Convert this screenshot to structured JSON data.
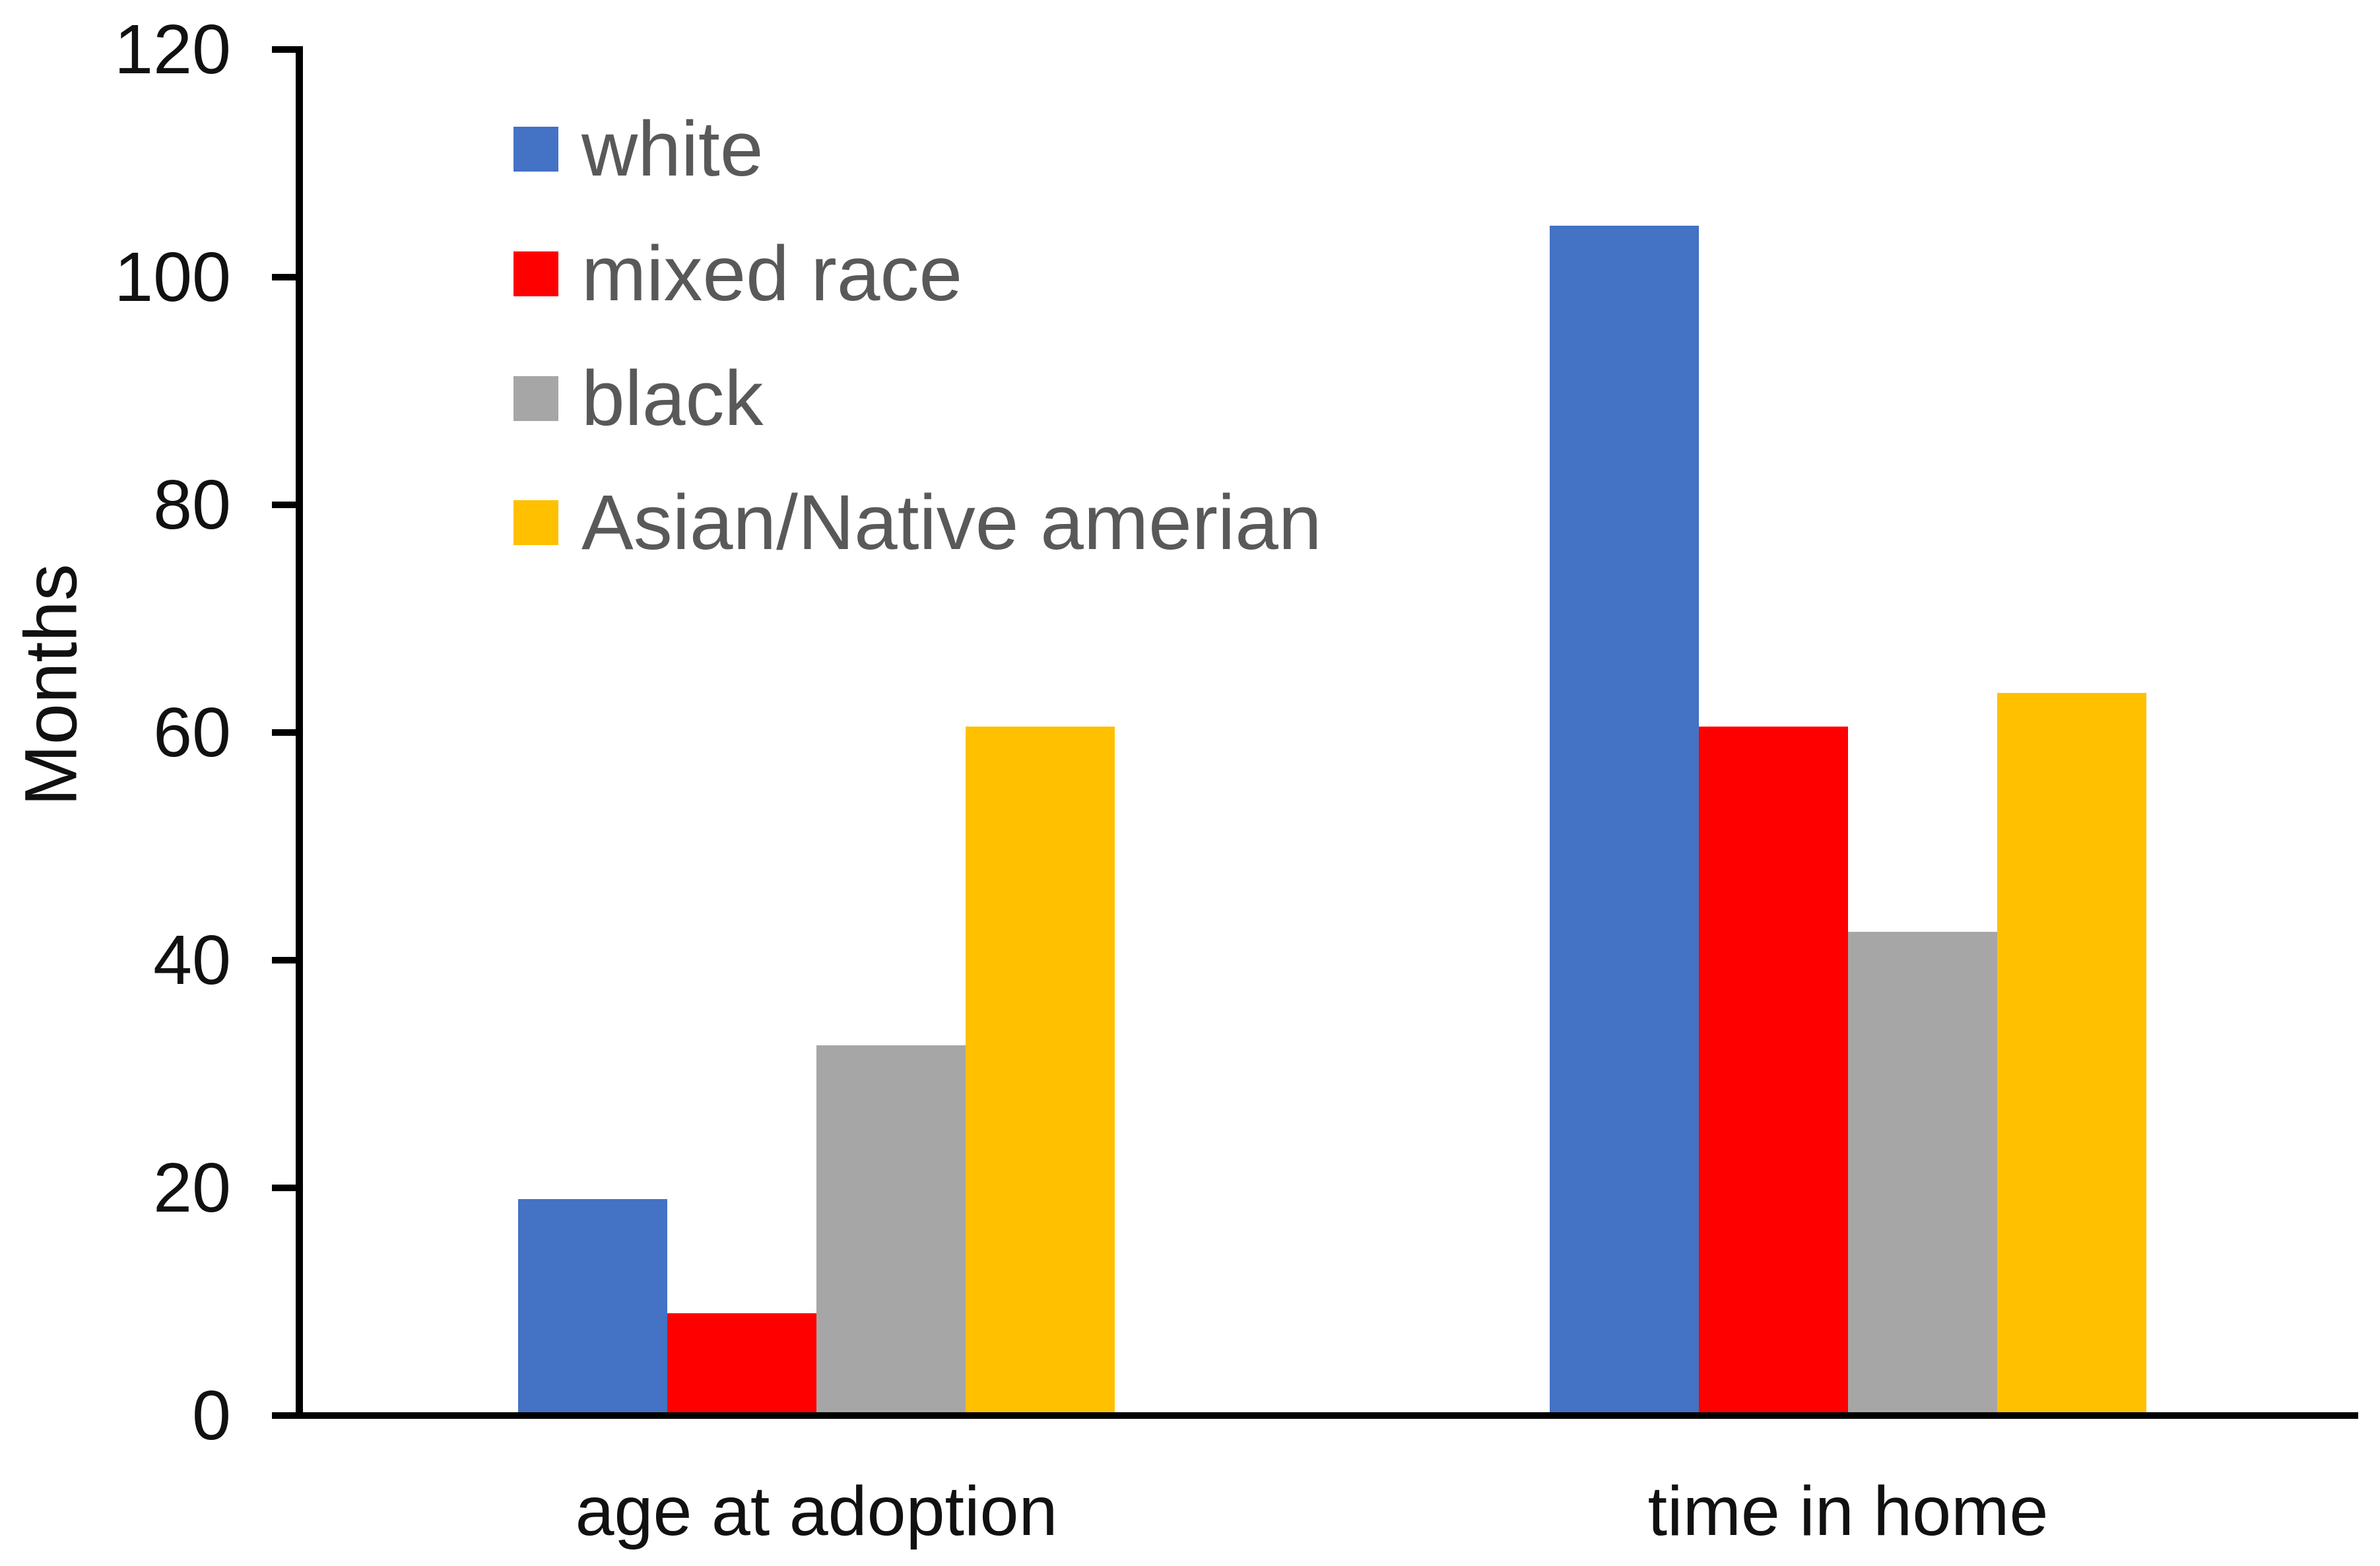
{
  "chart_data": {
    "type": "bar",
    "title": "",
    "ylabel": "Months",
    "xlabel": "",
    "ylim": [
      0,
      120
    ],
    "yticks": [
      0,
      20,
      40,
      60,
      80,
      100,
      120
    ],
    "grid": false,
    "legend_position": "top-left-inside",
    "categories": [
      "age at adoption",
      "time in home"
    ],
    "series": [
      {
        "name": "white",
        "color": "#4472C4",
        "values": [
          19,
          104.5
        ]
      },
      {
        "name": "mixed race",
        "color": "#FF0000",
        "values": [
          9,
          60.5
        ]
      },
      {
        "name": "black",
        "color": "#A6A6A6",
        "values": [
          32.5,
          42.5
        ]
      },
      {
        "name": "Asian/Native amerian",
        "color": "#FFC000",
        "values": [
          60.5,
          63.5
        ]
      }
    ],
    "axis_color": "#000000",
    "tick_label_color": "#111111",
    "legend_text_color": "#595959"
  }
}
